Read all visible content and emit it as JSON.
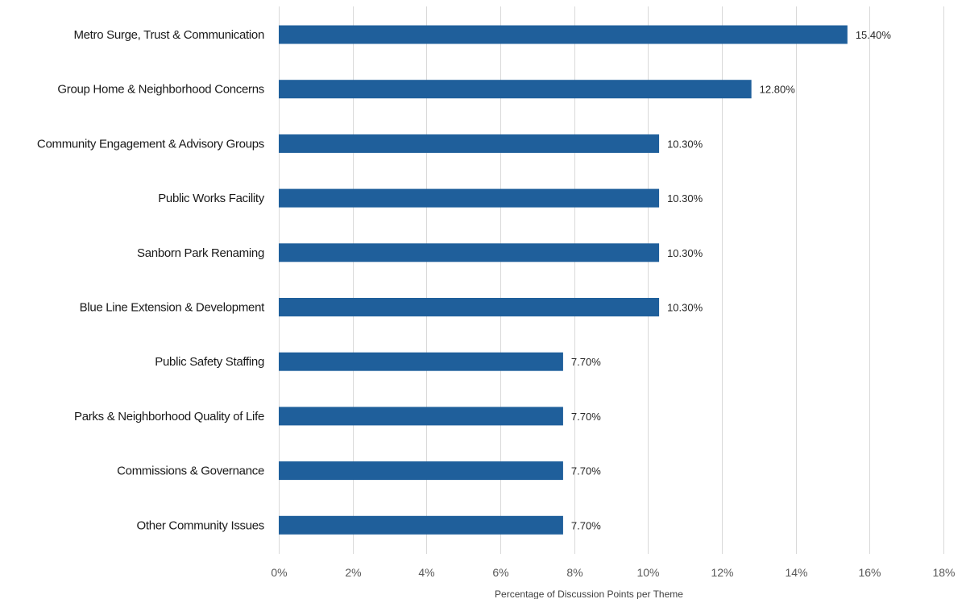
{
  "chart_data": {
    "type": "bar",
    "orientation": "horizontal",
    "categories": [
      "Metro Surge, Trust & Communication",
      "Group Home & Neighborhood Concerns",
      "Community Engagement & Advisory Groups",
      "Public Works Facility",
      "Sanborn Park Renaming",
      "Blue Line Extension & Development",
      "Public Safety Staffing",
      "Parks & Neighborhood Quality of Life",
      "Commissions & Governance",
      "Other Community Issues"
    ],
    "values": [
      15.4,
      12.8,
      10.3,
      10.3,
      10.3,
      10.3,
      7.7,
      7.7,
      7.7,
      7.7
    ],
    "data_labels": [
      "15.40%",
      "12.80%",
      "10.30%",
      "10.30%",
      "10.30%",
      "10.30%",
      "7.70%",
      "7.70%",
      "7.70%",
      "7.70%"
    ],
    "xticks": [
      "0%",
      "2%",
      "4%",
      "6%",
      "8%",
      "10%",
      "12%",
      "14%",
      "16%",
      "18%"
    ],
    "xlim": [
      0,
      18
    ],
    "xlabel": "Percentage of Discussion Points per Theme",
    "ylabel": "",
    "title": "",
    "grid": "vertical",
    "legend": "none",
    "bar_color": "#1f5f9b",
    "grid_color": "#d9d9d9"
  }
}
